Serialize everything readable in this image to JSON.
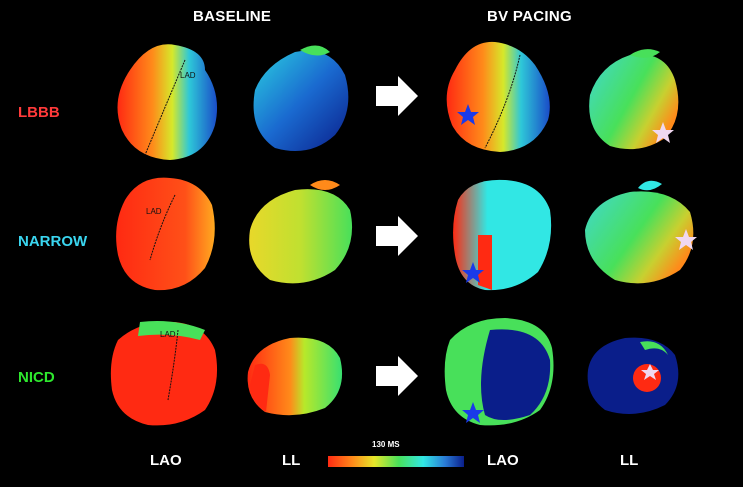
{
  "headers": {
    "baseline": "BASELINE",
    "bv_pacing": "BV PACING"
  },
  "rows": [
    {
      "label": "LBBB",
      "color": "#ff3a3a"
    },
    {
      "label": "NARROW",
      "color": "#3ad6f0"
    },
    {
      "label": "NICD",
      "color": "#2ee82e"
    }
  ],
  "annotation": {
    "lad": "LAD"
  },
  "views": {
    "lao": "LAO",
    "ll": "LL"
  },
  "scale": {
    "label": "130 MS"
  },
  "icons": {
    "arrow": "right-arrow-icon",
    "pacing_site": "star-icon"
  }
}
